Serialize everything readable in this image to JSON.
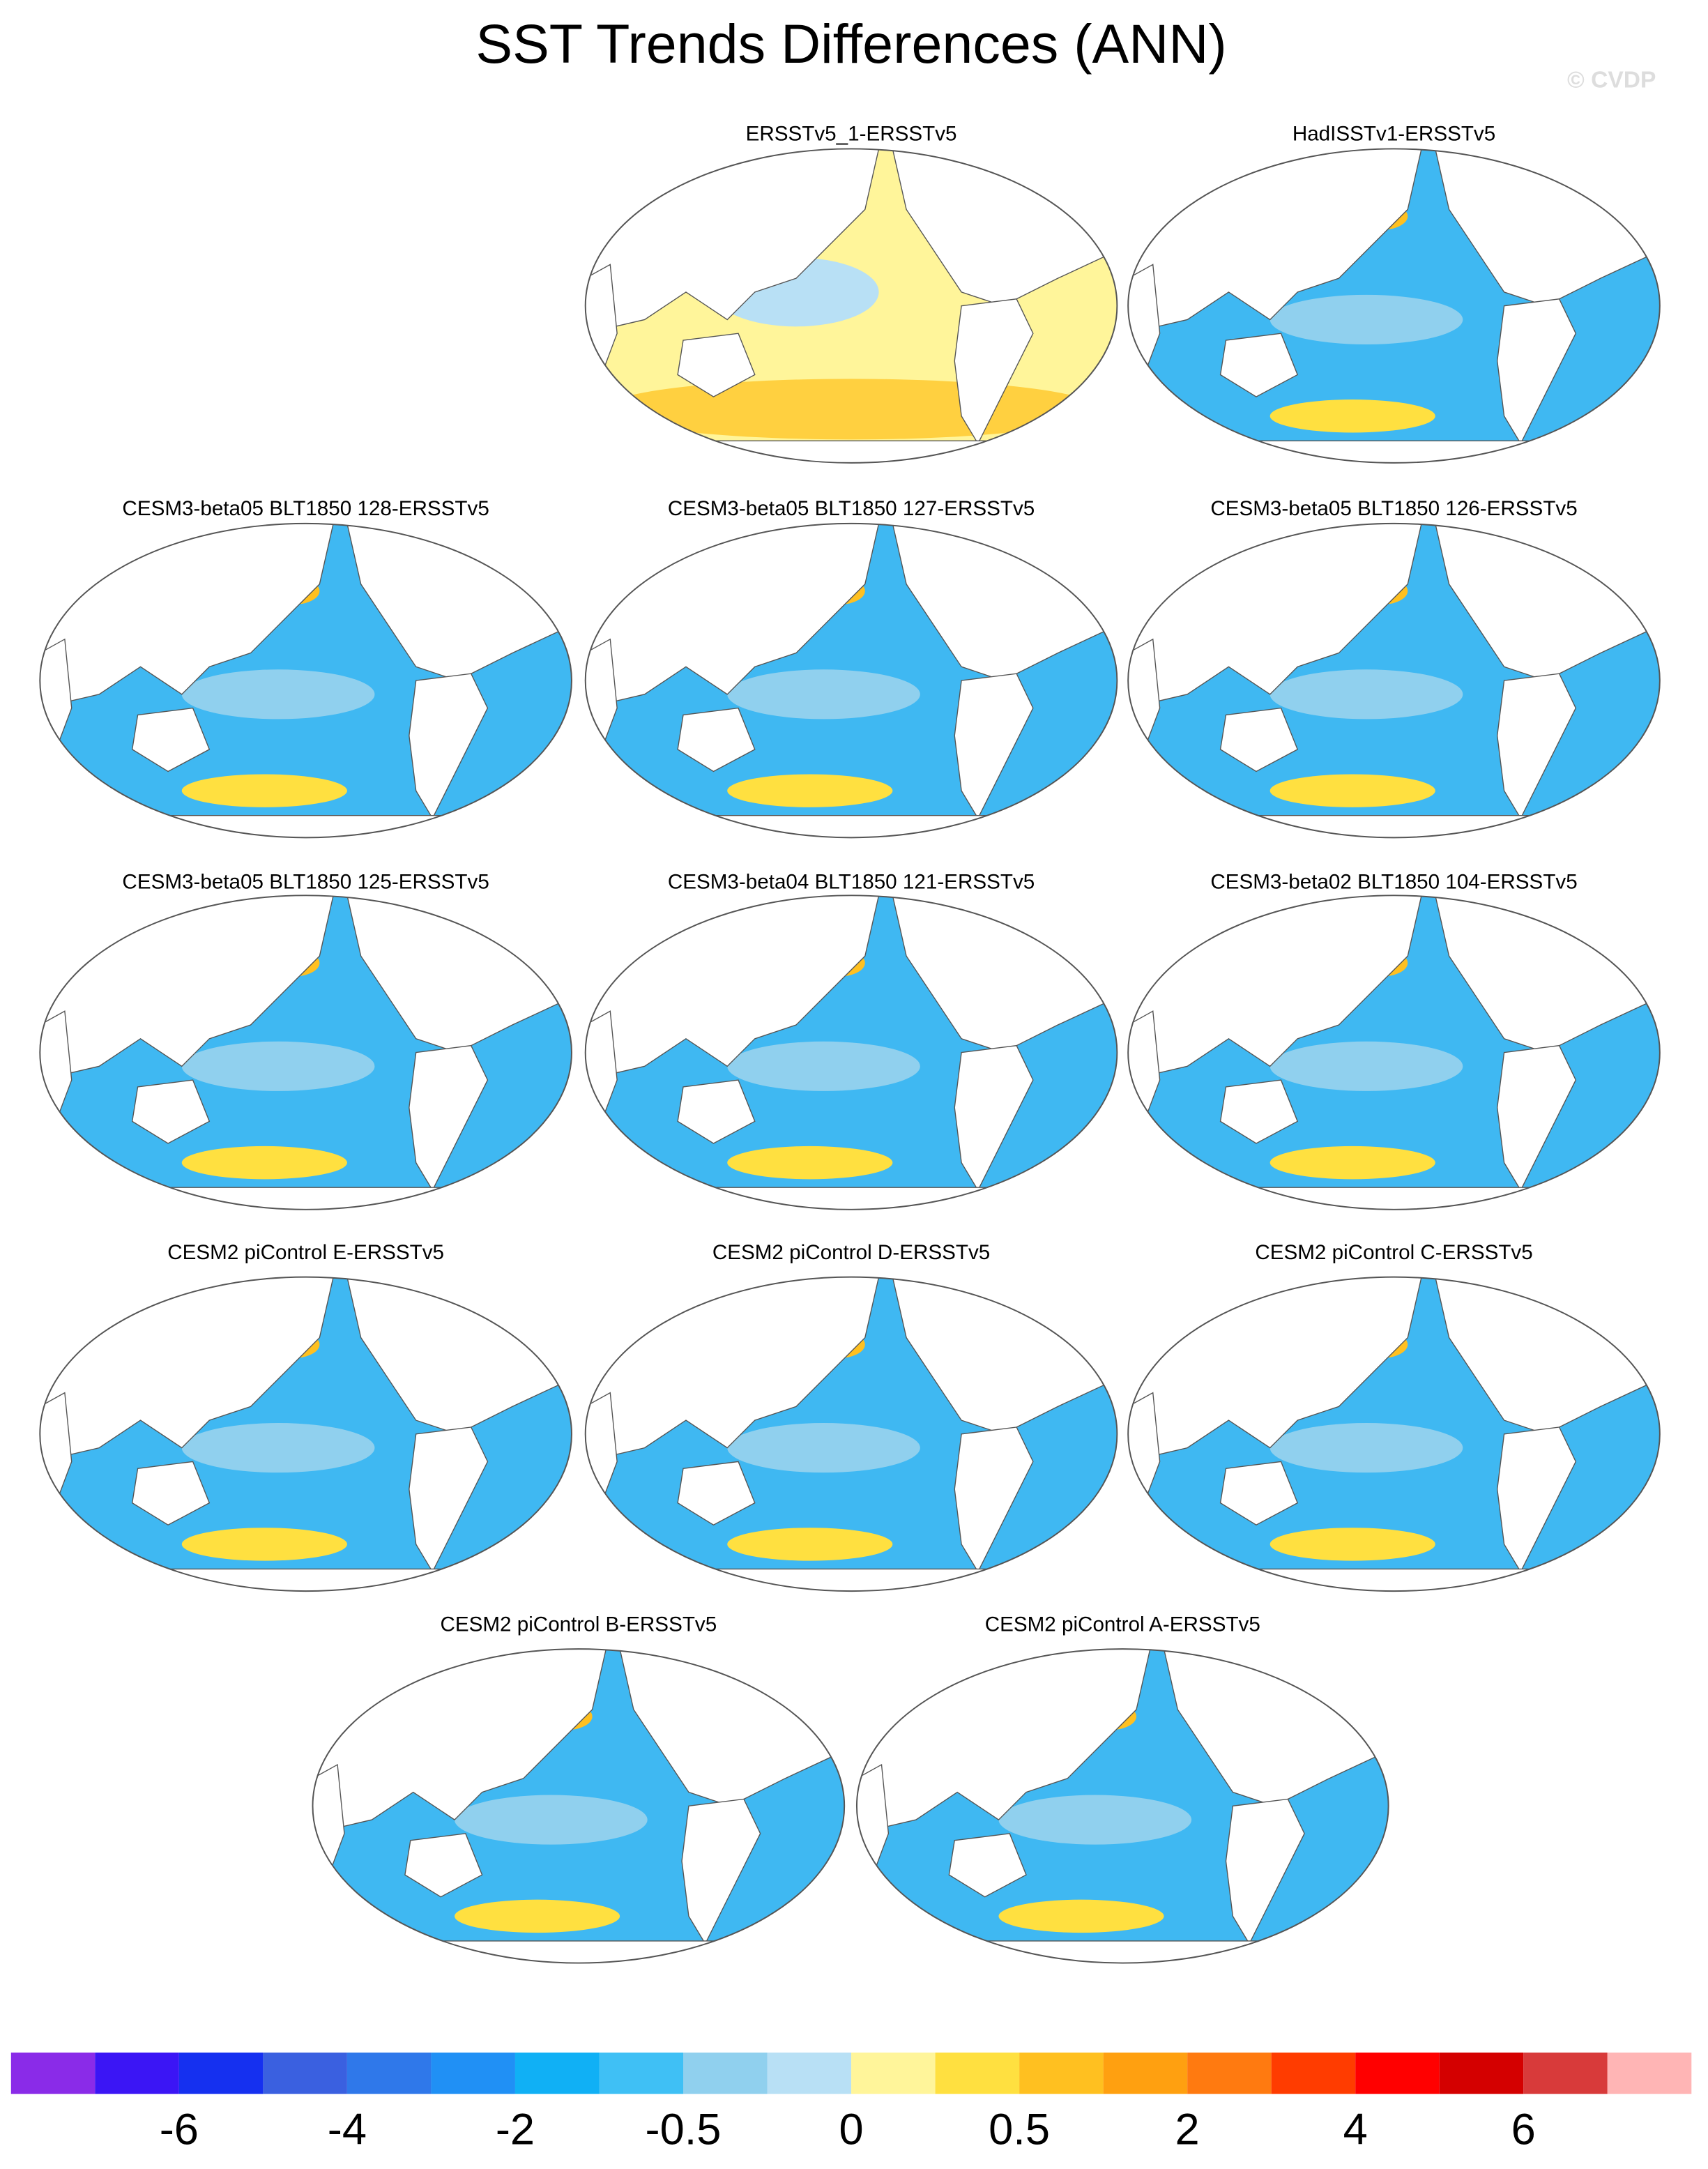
{
  "header": {
    "title": "SST Trends Differences (ANN)",
    "watermark": "© CVDP"
  },
  "panels": [
    {
      "title": "ERSSTv5_1-ERSSTv5"
    },
    {
      "title": "HadISSTv1-ERSSTv5"
    },
    {
      "title": "CESM3-beta05 BLT1850 128-ERSSTv5"
    },
    {
      "title": "CESM3-beta05 BLT1850 127-ERSSTv5"
    },
    {
      "title": "CESM3-beta05 BLT1850 126-ERSSTv5"
    },
    {
      "title": "CESM3-beta05 BLT1850 125-ERSSTv5"
    },
    {
      "title": "CESM3-beta04 BLT1850 121-ERSSTv5"
    },
    {
      "title": "CESM3-beta02 BLT1850 104-ERSSTv5"
    },
    {
      "title": "CESM2 piControl E-ERSSTv5"
    },
    {
      "title": "CESM2 piControl D-ERSSTv5"
    },
    {
      "title": "CESM2 piControl C-ERSSTv5"
    },
    {
      "title": "CESM2 piControl B-ERSSTv5"
    },
    {
      "title": "CESM2 piControl A-ERSSTv5"
    }
  ],
  "colorbar": {
    "colors": [
      "#8a2be8",
      "#3b15f5",
      "#1530f0",
      "#3a60e0",
      "#2f78ea",
      "#2090f5",
      "#10b0f5",
      "#3fc0f5",
      "#90d0ee",
      "#b8e0f5",
      "#fff59a",
      "#ffe040",
      "#ffc020",
      "#ffa010",
      "#ff7a10",
      "#ff3c00",
      "#ff0000",
      "#d40000",
      "#d83a3a",
      "#ffb5b5"
    ],
    "labels": [
      "-6",
      "-4",
      "-2",
      "-0.5",
      "0",
      "0.5",
      "2",
      "4",
      "6"
    ]
  }
}
